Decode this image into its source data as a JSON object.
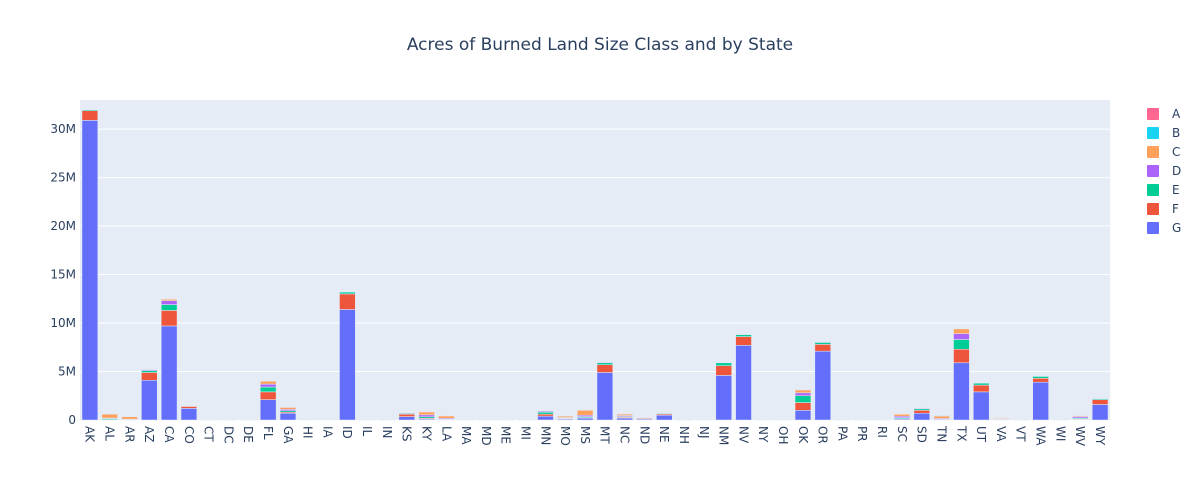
{
  "chart_data": {
    "type": "bar",
    "stacked": true,
    "title": "Acres of Burned Land Size Class and by State",
    "xlabel": "",
    "ylabel": "",
    "ylim": [
      0,
      33000000
    ],
    "yticks": [
      0,
      5000000,
      10000000,
      15000000,
      20000000,
      25000000,
      30000000
    ],
    "ytick_labels": [
      "0",
      "5M",
      "10M",
      "15M",
      "20M",
      "25M",
      "30M"
    ],
    "grid": true,
    "legend_position": "right",
    "categories": [
      "AK",
      "AL",
      "AR",
      "AZ",
      "CA",
      "CO",
      "CT",
      "DC",
      "DE",
      "FL",
      "GA",
      "HI",
      "IA",
      "ID",
      "IL",
      "IN",
      "KS",
      "KY",
      "LA",
      "MA",
      "MD",
      "ME",
      "MI",
      "MN",
      "MO",
      "MS",
      "MT",
      "NC",
      "ND",
      "NE",
      "NH",
      "NJ",
      "NM",
      "NV",
      "NY",
      "OH",
      "OK",
      "OR",
      "PA",
      "PR",
      "RI",
      "SC",
      "SD",
      "TN",
      "TX",
      "UT",
      "VA",
      "VT",
      "WA",
      "WI",
      "WV",
      "WY"
    ],
    "series": [
      {
        "name": "A",
        "color": "#FF6692",
        "values": [
          2000,
          8000,
          8000,
          5000,
          20000,
          2000,
          2000,
          500,
          1000,
          15000,
          10000,
          1000,
          1000,
          3000,
          3000,
          2000,
          5000,
          10000,
          10000,
          2000,
          2000,
          2000,
          3000,
          5000,
          8000,
          15000,
          3000,
          10000,
          5000,
          3000,
          1000,
          3000,
          2000,
          2000,
          2000,
          2000,
          10000,
          3000,
          2000,
          1000,
          500,
          10000,
          3000,
          10000,
          10000,
          2000,
          5000,
          500,
          3000,
          2000,
          5000,
          2000
        ]
      },
      {
        "name": "B",
        "color": "#19D3F3",
        "values": [
          5000,
          50000,
          40000,
          10000,
          30000,
          5000,
          3000,
          1000,
          2000,
          50000,
          30000,
          2000,
          2000,
          5000,
          8000,
          5000,
          15000,
          50000,
          50000,
          3000,
          3000,
          3000,
          5000,
          10000,
          30000,
          60000,
          8000,
          50000,
          10000,
          10000,
          2000,
          5000,
          5000,
          5000,
          3000,
          5000,
          30000,
          5000,
          3000,
          2000,
          1000,
          40000,
          10000,
          60000,
          50000,
          5000,
          10000,
          1000,
          5000,
          3000,
          20000,
          5000
        ]
      },
      {
        "name": "C",
        "color": "#FFA15A",
        "values": [
          15000,
          400000,
          250000,
          50000,
          150000,
          20000,
          8000,
          3000,
          5000,
          300000,
          200000,
          10000,
          5000,
          20000,
          30000,
          20000,
          40000,
          300000,
          250000,
          10000,
          15000,
          5000,
          10000,
          50000,
          150000,
          500000,
          30000,
          150000,
          30000,
          20000,
          5000,
          30000,
          20000,
          20000,
          10000,
          10000,
          300000,
          30000,
          10000,
          5000,
          3000,
          200000,
          50000,
          250000,
          500000,
          20000,
          80000,
          2000,
          10000,
          10000,
          80000,
          15000
        ]
      },
      {
        "name": "D",
        "color": "#AB63FA",
        "values": [
          20000,
          80000,
          50000,
          100000,
          400000,
          30000,
          5000,
          2000,
          5000,
          300000,
          150000,
          20000,
          20000,
          50000,
          20000,
          10000,
          70000,
          200000,
          100000,
          10000,
          10000,
          5000,
          10000,
          100000,
          60000,
          150000,
          80000,
          100000,
          30000,
          40000,
          2000,
          10000,
          50000,
          60000,
          8000,
          10000,
          300000,
          60000,
          10000,
          3000,
          2000,
          150000,
          80000,
          100000,
          600000,
          50000,
          50000,
          2000,
          50000,
          20000,
          150000,
          50000
        ]
      },
      {
        "name": "E",
        "color": "#00CC96",
        "values": [
          100000,
          100000,
          30000,
          200000,
          600000,
          50000,
          2000,
          0,
          2000,
          500000,
          150000,
          50000,
          30000,
          200000,
          10000,
          5000,
          80000,
          150000,
          50000,
          5000,
          5000,
          2000,
          10000,
          200000,
          60000,
          100000,
          200000,
          80000,
          40000,
          70000,
          1000,
          5000,
          300000,
          200000,
          5000,
          5000,
          700000,
          200000,
          5000,
          2000,
          1000,
          100000,
          150000,
          50000,
          1000000,
          200000,
          30000,
          1000,
          200000,
          20000,
          100000,
          100000
        ]
      },
      {
        "name": "F",
        "color": "#EF553B",
        "values": [
          1000000,
          20000,
          10000,
          800000,
          1600000,
          200000,
          0,
          0,
          0,
          800000,
          100000,
          50000,
          50000,
          1600000,
          5000,
          0,
          250000,
          80000,
          20000,
          0,
          0,
          0,
          5000,
          200000,
          30000,
          50000,
          800000,
          80000,
          80000,
          120000,
          0,
          0,
          1000000,
          900000,
          0,
          0,
          800000,
          700000,
          0,
          0,
          0,
          40000,
          300000,
          10000,
          1400000,
          700000,
          10000,
          0,
          400000,
          10000,
          60000,
          500000
        ]
      },
      {
        "name": "G",
        "color": "#636EFA",
        "values": [
          30900000,
          0,
          0,
          4100000,
          9700000,
          1200000,
          0,
          0,
          0,
          2100000,
          700000,
          50000,
          0,
          11400000,
          0,
          0,
          350000,
          100000,
          0,
          0,
          0,
          0,
          0,
          400000,
          100000,
          200000,
          4900000,
          200000,
          100000,
          500000,
          0,
          0,
          4600000,
          7700000,
          0,
          0,
          1000000,
          7100000,
          0,
          0,
          0,
          100000,
          700000,
          0,
          5900000,
          2900000,
          50000,
          0,
          3900000,
          0,
          50000,
          1600000
        ]
      }
    ]
  }
}
